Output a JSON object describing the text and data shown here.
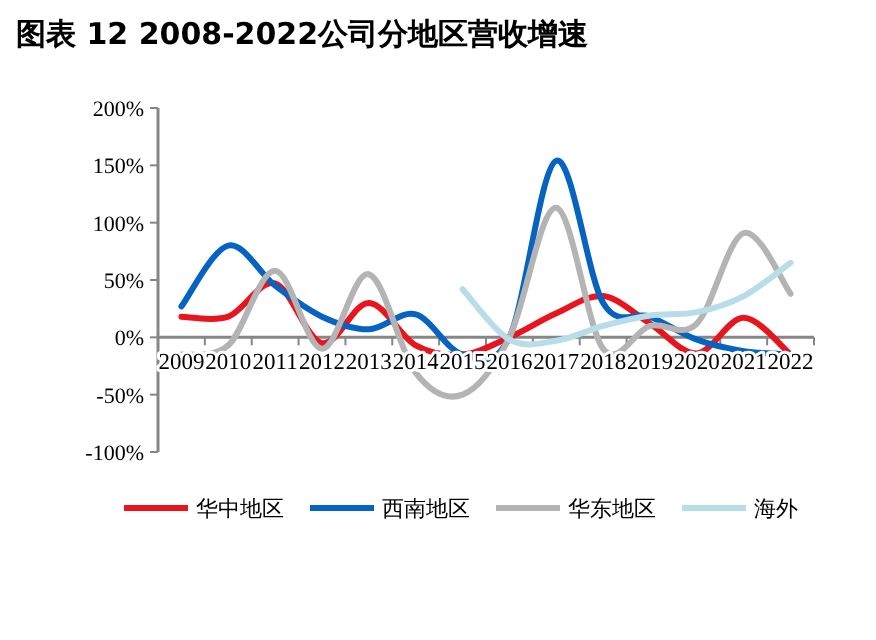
{
  "chart_data": {
    "type": "line",
    "title": "图表 12   2008-2022公司分地区营收增速",
    "categories": [
      "2009",
      "2010",
      "2011",
      "2012",
      "2013",
      "2014",
      "2015",
      "2016",
      "2017",
      "2018",
      "2019",
      "2020",
      "2021",
      "2022"
    ],
    "series": [
      {
        "name": "华中地区",
        "color": "#e8141e",
        "values": [
          18,
          18,
          47,
          -5,
          30,
          -7,
          -15,
          0,
          21,
          36,
          12,
          -14,
          17,
          -15
        ]
      },
      {
        "name": "西南地区",
        "color": "#0563c1",
        "values": [
          27,
          80,
          45,
          18,
          7,
          20,
          -15,
          0,
          154,
          30,
          18,
          -2,
          -12,
          -15
        ]
      },
      {
        "name": "华东地区",
        "color": "#b4b4b4",
        "values": [
          -15,
          -7,
          58,
          -10,
          55,
          -31,
          -50,
          0,
          113,
          -10,
          10,
          12,
          91,
          38
        ]
      },
      {
        "name": "海外",
        "color": "#b7dde8",
        "values": [
          null,
          null,
          null,
          null,
          null,
          null,
          42,
          -2,
          -3,
          10,
          19,
          22,
          36,
          65
        ]
      }
    ],
    "ylim": [
      -100,
      200
    ],
    "yticks": [
      {
        "value": -100,
        "label": "-100%"
      },
      {
        "value": -50,
        "label": "-50%"
      },
      {
        "value": 0,
        "label": "0%"
      },
      {
        "value": 50,
        "label": "50%"
      },
      {
        "value": 100,
        "label": "100%"
      },
      {
        "value": 150,
        "label": "150%"
      },
      {
        "value": 200,
        "label": "200%"
      }
    ],
    "legend": "bottom",
    "grid": false,
    "marker": "none",
    "line_style": "solid"
  }
}
